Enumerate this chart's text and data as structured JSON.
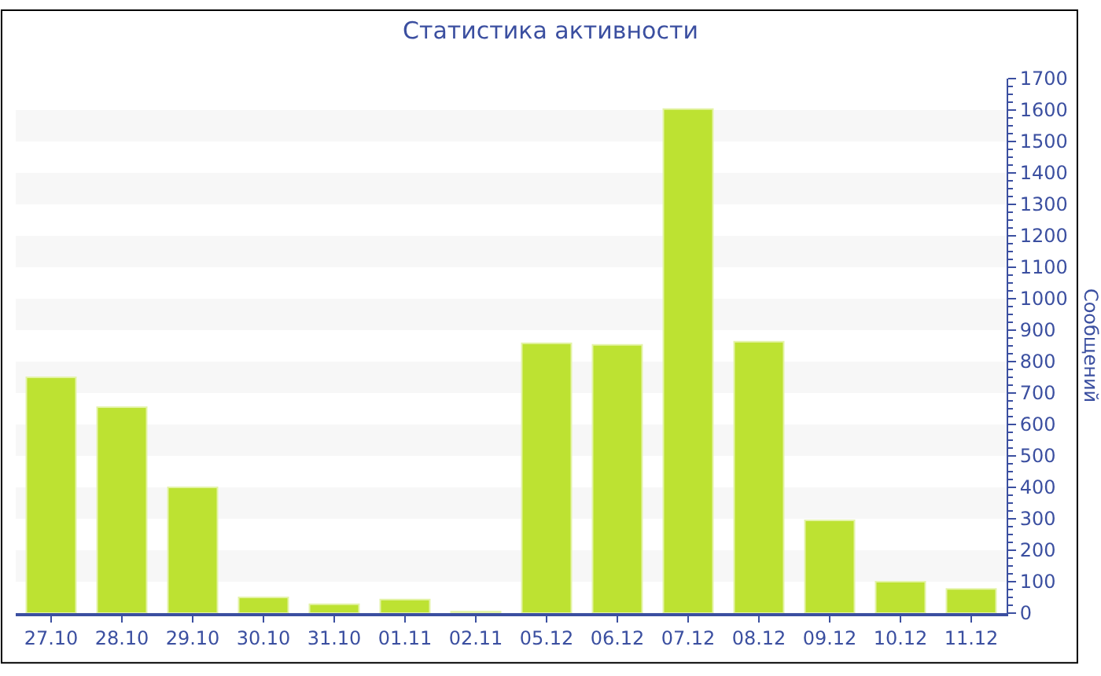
{
  "chart_data": {
    "type": "bar",
    "title": "Статистика активности",
    "ylabel": "Сообщений",
    "categories": [
      "27.10",
      "28.10",
      "29.10",
      "30.10",
      "31.10",
      "01.11",
      "02.11",
      "05.12",
      "06.12",
      "07.12",
      "08.12",
      "09.12",
      "10.12",
      "11.12"
    ],
    "values": [
      750,
      655,
      400,
      50,
      28,
      43,
      5,
      858,
      853,
      1603,
      863,
      295,
      100,
      77
    ],
    "color": "#bde232",
    "ylim": [
      0,
      1700
    ],
    "yticks": [
      0,
      100,
      200,
      300,
      400,
      500,
      600,
      700,
      800,
      900,
      1000,
      1100,
      1200,
      1300,
      1400,
      1500,
      1600,
      1700
    ],
    "bands": [
      {
        "axis": "y",
        "from": 100,
        "to": 200,
        "color": "#f7f7f7"
      },
      {
        "axis": "y",
        "from": 300,
        "to": 400,
        "color": "#f7f7f7"
      },
      {
        "axis": "y",
        "from": 500,
        "to": 600,
        "color": "#f7f7f7"
      },
      {
        "axis": "y",
        "from": 700,
        "to": 800,
        "color": "#f7f7f7"
      },
      {
        "axis": "y",
        "from": 900,
        "to": 1000,
        "color": "#f7f7f7"
      },
      {
        "axis": "y",
        "from": 1100,
        "to": 1200,
        "color": "#f7f7f7"
      },
      {
        "axis": "y",
        "from": 1300,
        "to": 1400,
        "color": "#f7f7f7"
      },
      {
        "axis": "y",
        "from": 1500,
        "to": 1600,
        "color": "#f7f7f7"
      }
    ]
  }
}
